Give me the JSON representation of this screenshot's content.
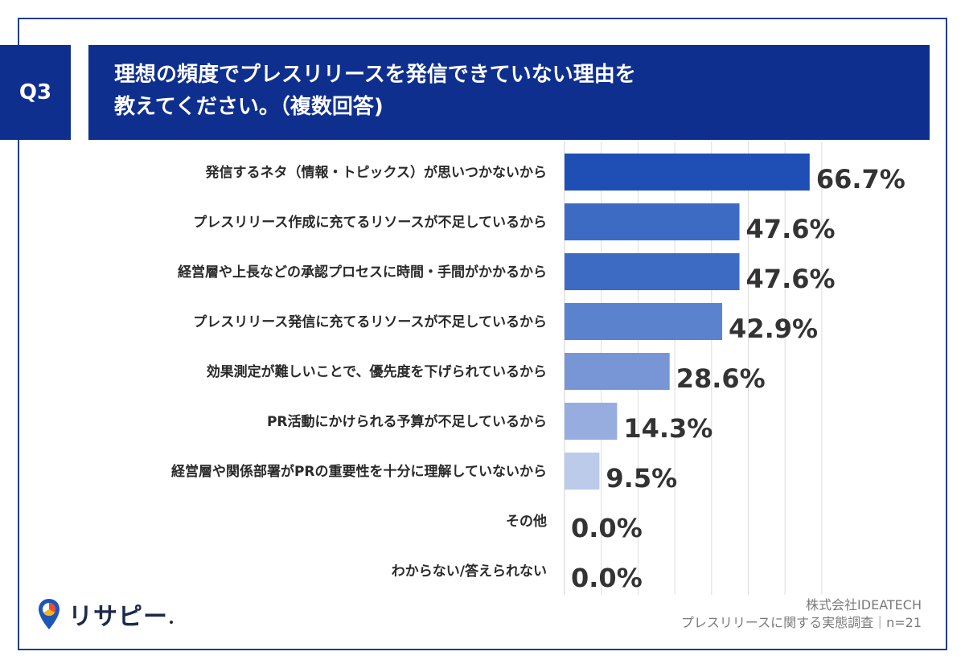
{
  "question": {
    "badge": "Q3",
    "title_line1": "理想の頻度でプレスリリースを発信できていない理由を",
    "title_line2": "教えてください。（複数回答)"
  },
  "chart_data": {
    "type": "bar",
    "orientation": "horizontal",
    "title": "理想の頻度でプレスリリースを発信できていない理由を教えてください。（複数回答)",
    "categories": [
      "発信するネタ（情報・トピックス）が思いつかないから",
      "プレスリリース作成に充てるリソースが不足しているから",
      "経営層や上長などの承認プロセスに時間・手間がかかるから",
      "プレスリリース発信に充てるリソースが不足しているから",
      "効果測定が難しいことで、優先度を下げられているから",
      "PR活動にかけられる予算が不足しているから",
      "経営層や関係部署がPRの重要性を十分に理解していないから",
      "その他",
      "わからない/答えられない"
    ],
    "values": [
      66.7,
      47.6,
      47.6,
      42.9,
      28.6,
      14.3,
      9.5,
      0.0,
      0.0
    ],
    "value_labels": [
      "66.7%",
      "47.6%",
      "47.6%",
      "42.9%",
      "28.6%",
      "14.3%",
      "9.5%",
      "0.0%",
      "0.0%"
    ],
    "bar_colors": [
      "#1f4eb4",
      "#3d6bc4",
      "#3d6bc4",
      "#5b83cd",
      "#7896d6",
      "#97addf",
      "#bccbea",
      "#d5def0",
      "#d5def0"
    ],
    "xlim": [
      0,
      70
    ],
    "grid": true,
    "gridline_step": 10
  },
  "footer": {
    "logo_text": "リサピー",
    "company": "株式会社IDEATECH",
    "survey": "プレスリリースに関する実態調査｜n=21"
  }
}
